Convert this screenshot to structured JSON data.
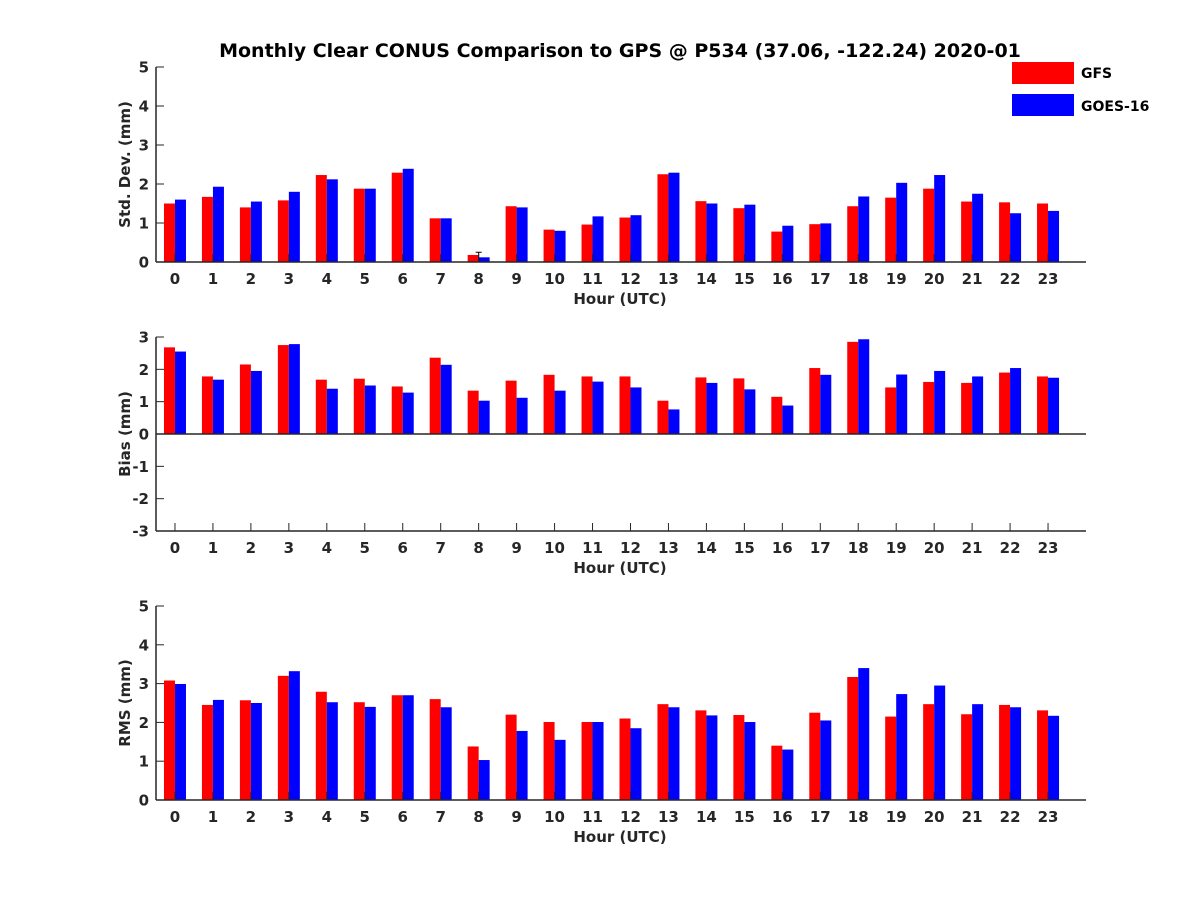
{
  "figure": {
    "title": "Monthly Clear CONUS Comparison to GPS @ P534 (37.06, -122.24) 2020-01"
  },
  "legend": {
    "placement": "top-right",
    "entries": [
      {
        "name": "GFS",
        "color": "#ff0000"
      },
      {
        "name": "GOES-16",
        "color": "#0000ff"
      }
    ]
  },
  "chart_data": [
    {
      "type": "bar",
      "xlabel": "Hour (UTC)",
      "ylabel": "Std. Dev. (mm)",
      "ylim": [
        0,
        5
      ],
      "yticks": [
        0,
        1,
        2,
        3,
        4,
        5
      ],
      "categories": [
        "0",
        "1",
        "2",
        "3",
        "4",
        "5",
        "6",
        "7",
        "8",
        "9",
        "10",
        "11",
        "12",
        "13",
        "14",
        "15",
        "16",
        "17",
        "18",
        "19",
        "20",
        "21",
        "22",
        "23"
      ],
      "series": [
        {
          "name": "GFS",
          "color": "#ff0000",
          "values": [
            1.5,
            1.67,
            1.4,
            1.58,
            2.23,
            1.88,
            2.29,
            1.12,
            0.18,
            1.43,
            0.83,
            0.96,
            1.14,
            2.25,
            1.56,
            1.38,
            0.78,
            0.97,
            1.43,
            1.65,
            1.88,
            1.55,
            1.53,
            1.5
          ]
        },
        {
          "name": "GOES-16",
          "color": "#0000ff",
          "values": [
            1.6,
            1.93,
            1.55,
            1.8,
            2.12,
            1.88,
            2.39,
            1.12,
            0.12,
            1.4,
            0.8,
            1.17,
            1.2,
            2.29,
            1.5,
            1.47,
            0.93,
            0.99,
            1.68,
            2.03,
            2.23,
            1.75,
            1.25,
            1.31
          ]
        }
      ],
      "error_bar": {
        "category": "8",
        "low": 0.0,
        "high": 0.25
      }
    },
    {
      "type": "bar",
      "xlabel": "Hour (UTC)",
      "ylabel": "Bias (mm)",
      "ylim": [
        -3,
        3
      ],
      "yticks": [
        -3,
        -2,
        -1,
        0,
        1,
        2,
        3
      ],
      "categories": [
        "0",
        "1",
        "2",
        "3",
        "4",
        "5",
        "6",
        "7",
        "8",
        "9",
        "10",
        "11",
        "12",
        "13",
        "14",
        "15",
        "16",
        "17",
        "18",
        "19",
        "20",
        "21",
        "22",
        "23"
      ],
      "series": [
        {
          "name": "GFS",
          "color": "#ff0000",
          "values": [
            2.68,
            1.78,
            2.15,
            2.75,
            1.68,
            1.71,
            1.47,
            2.36,
            1.34,
            1.65,
            1.83,
            1.78,
            1.78,
            1.03,
            1.75,
            1.72,
            1.15,
            2.04,
            2.85,
            1.44,
            1.61,
            1.58,
            1.9,
            1.78
          ]
        },
        {
          "name": "GOES-16",
          "color": "#0000ff",
          "values": [
            2.55,
            1.68,
            1.95,
            2.78,
            1.4,
            1.5,
            1.28,
            2.14,
            1.03,
            1.12,
            1.34,
            1.62,
            1.44,
            0.76,
            1.58,
            1.38,
            0.88,
            1.83,
            2.93,
            1.84,
            1.95,
            1.78,
            2.04,
            1.74
          ]
        }
      ]
    },
    {
      "type": "bar",
      "xlabel": "Hour (UTC)",
      "ylabel": "RMS (mm)",
      "ylim": [
        0,
        5
      ],
      "yticks": [
        0,
        1,
        2,
        3,
        4,
        5
      ],
      "categories": [
        "0",
        "1",
        "2",
        "3",
        "4",
        "5",
        "6",
        "7",
        "8",
        "9",
        "10",
        "11",
        "12",
        "13",
        "14",
        "15",
        "16",
        "17",
        "18",
        "19",
        "20",
        "21",
        "22",
        "23"
      ],
      "series": [
        {
          "name": "GFS",
          "color": "#ff0000",
          "values": [
            3.08,
            2.45,
            2.57,
            3.2,
            2.79,
            2.52,
            2.7,
            2.6,
            1.38,
            2.2,
            2.01,
            2.01,
            2.1,
            2.47,
            2.31,
            2.19,
            1.4,
            2.25,
            3.17,
            2.15,
            2.47,
            2.21,
            2.45,
            2.31
          ]
        },
        {
          "name": "GOES-16",
          "color": "#0000ff",
          "values": [
            2.99,
            2.58,
            2.5,
            3.32,
            2.52,
            2.4,
            2.7,
            2.39,
            1.03,
            1.78,
            1.55,
            2.01,
            1.85,
            2.39,
            2.18,
            2.01,
            1.3,
            2.05,
            3.4,
            2.73,
            2.95,
            2.47,
            2.39,
            2.17
          ]
        }
      ]
    }
  ]
}
